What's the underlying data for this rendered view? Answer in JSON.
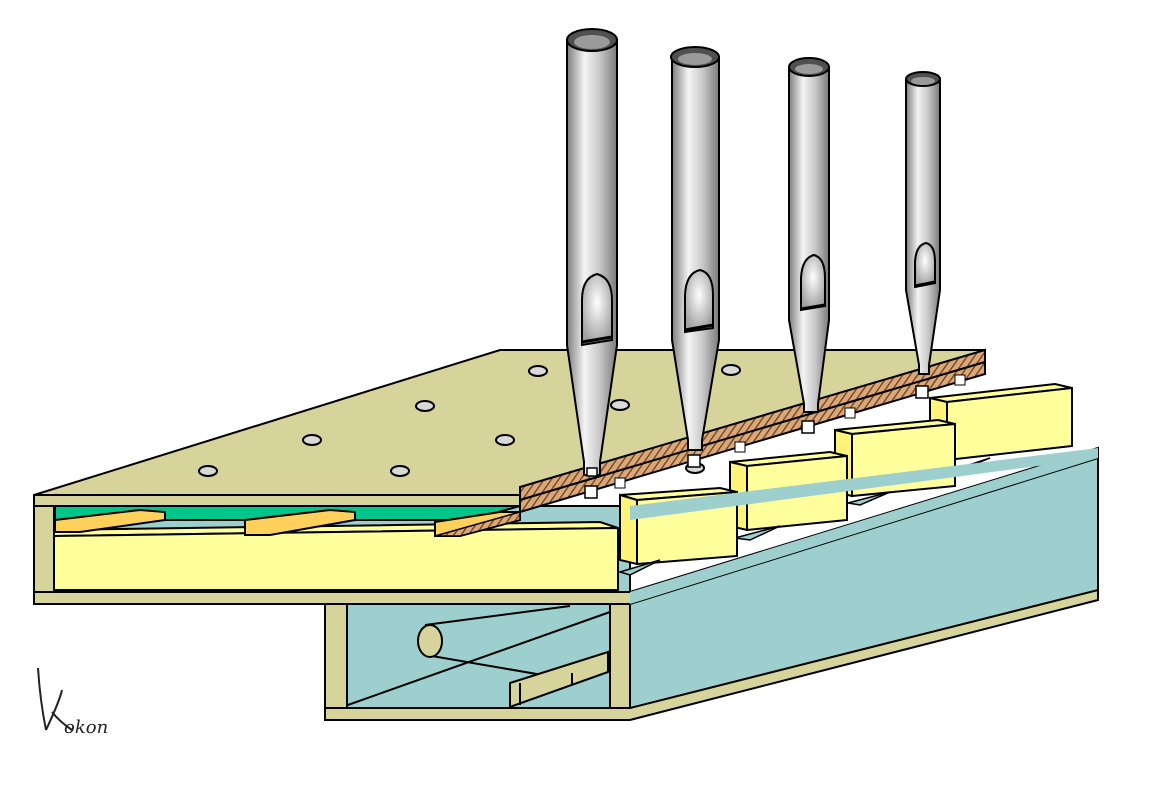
{
  "diagram": {
    "subject": "organ-pipe-windchest-cutaway",
    "pipe_count": 4,
    "hole_count": 9,
    "key_count": 4,
    "colors": {
      "board": "#d6d49a",
      "wind_chamber": "#9ccfce",
      "sliders": "#ffff9c",
      "pallet_seal": "#00c68c",
      "wood_strip": "#ffd15a",
      "pipe_metal": "#bdbdbd",
      "hatched_slider": "#c58a5c",
      "outline": "#000000"
    }
  },
  "signature": {
    "text": "Kokon"
  }
}
